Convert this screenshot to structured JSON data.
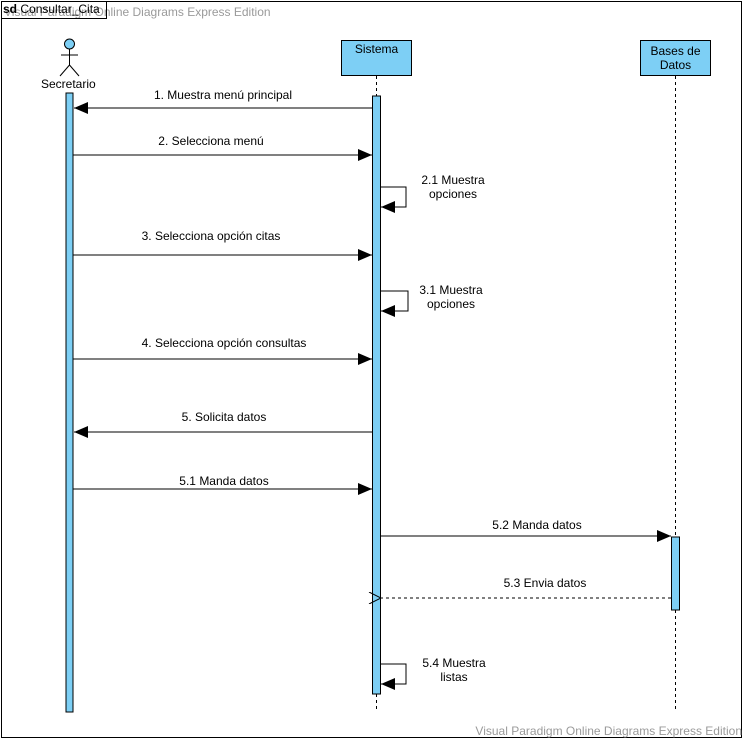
{
  "frame": {
    "keyword": "sd",
    "name": "Consultar_Cita"
  },
  "watermark": "Visual Paradigm Online Diagrams Express Edition",
  "lifelines": {
    "secretario": "Secretario",
    "sistema": "Sistema",
    "bases_line1": "Bases de",
    "bases_line2": "Datos"
  },
  "messages": [
    {
      "label": "1. Muestra menú principal"
    },
    {
      "label": "2. Selecciona menú"
    },
    {
      "label": "2.1 Muestra",
      "label2": "opciones"
    },
    {
      "label": "3. Selecciona opción citas"
    },
    {
      "label": "3.1 Muestra",
      "label2": "opciones"
    },
    {
      "label": "4. Selecciona opción consultas"
    },
    {
      "label": "5. Solicita datos"
    },
    {
      "label": "5.1 Manda datos"
    },
    {
      "label": "5.2 Manda datos"
    },
    {
      "label": "5.3 Envia datos"
    },
    {
      "label": "5.4 Muestra",
      "label2": "listas"
    }
  ],
  "colors": {
    "fill": "#7dcff5",
    "line": "#000000",
    "watermark": "#9a9a9a"
  }
}
